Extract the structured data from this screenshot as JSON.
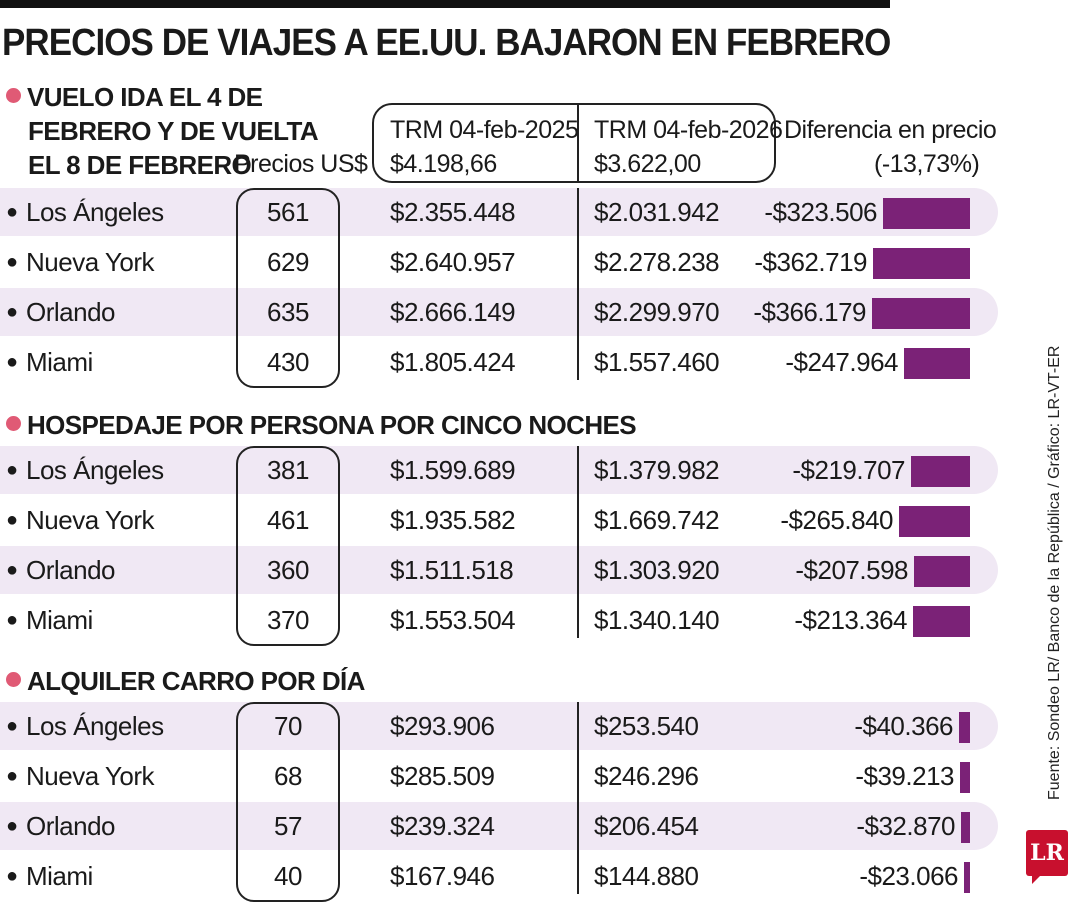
{
  "title": "PRECIOS DE VIAJES A EE.UU. BAJARON EN FEBRERO",
  "headers": {
    "section1_line1": "VUELO IDA EL 4 DE",
    "section1_line2": "FEBRERO Y DE VUELTA",
    "section1_line3": "EL 8 DE FEBRERO",
    "precios": "Precios US$",
    "trm2025_label": "TRM 04-feb-2025",
    "trm2025_value": "$4.198,66",
    "trm2026_label": "TRM 04-feb-2026",
    "trm2026_value": "$3.622,00",
    "diff_label": "Diferencia en precio",
    "diff_pct": "(-13,73%)"
  },
  "sections": [
    {
      "title": "VUELO IDA EL 4 DE FEBRERO Y DE VUELTA EL 8 DE FEBRERO",
      "rows": [
        {
          "city": "Los Ángeles",
          "usd": "561",
          "v2025": "$2.355.448",
          "v2026": "$2.031.942",
          "diff": "-$323.506",
          "diff_value": 323506
        },
        {
          "city": "Nueva York",
          "usd": "629",
          "v2025": "$2.640.957",
          "v2026": "$2.278.238",
          "diff": "-$362.719",
          "diff_value": 362719
        },
        {
          "city": "Orlando",
          "usd": "635",
          "v2025": "$2.666.149",
          "v2026": "$2.299.970",
          "diff": "-$366.179",
          "diff_value": 366179
        },
        {
          "city": "Miami",
          "usd": "430",
          "v2025": "$1.805.424",
          "v2026": "$1.557.460",
          "diff": "-$247.964",
          "diff_value": 247964
        }
      ]
    },
    {
      "title": "HOSPEDAJE POR PERSONA POR CINCO NOCHES",
      "rows": [
        {
          "city": "Los Ángeles",
          "usd": "381",
          "v2025": "$1.599.689",
          "v2026": "$1.379.982",
          "diff": "-$219.707",
          "diff_value": 219707
        },
        {
          "city": "Nueva York",
          "usd": "461",
          "v2025": "$1.935.582",
          "v2026": "$1.669.742",
          "diff": "-$265.840",
          "diff_value": 265840
        },
        {
          "city": "Orlando",
          "usd": "360",
          "v2025": "$1.511.518",
          "v2026": "$1.303.920",
          "diff": "-$207.598",
          "diff_value": 207598
        },
        {
          "city": "Miami",
          "usd": "370",
          "v2025": "$1.553.504",
          "v2026": "$1.340.140",
          "diff": "-$213.364",
          "diff_value": 213364
        }
      ]
    },
    {
      "title": "ALQUILER CARRO POR DÍA",
      "rows": [
        {
          "city": "Los Ángeles",
          "usd": "70",
          "v2025": "$293.906",
          "v2026": "$253.540",
          "diff": "-$40.366",
          "diff_value": 40366
        },
        {
          "city": "Nueva York",
          "usd": "68",
          "v2025": "$285.509",
          "v2026": "$246.296",
          "diff": "-$39.213",
          "diff_value": 39213
        },
        {
          "city": "Orlando",
          "usd": "57",
          "v2025": "$239.324",
          "v2026": "$206.454",
          "diff": "-$32.870",
          "diff_value": 32870
        },
        {
          "city": "Miami",
          "usd": "40",
          "v2025": "$167.946",
          "v2026": "$144.880",
          "diff": "-$23.066",
          "diff_value": 23066
        }
      ]
    }
  ],
  "source": "Fuente: Sondeo LR/ Banco de la República / Gráfico: LR-VT-ER",
  "logo_text": "LR",
  "colors": {
    "bar": "#7b2277",
    "dot": "#e05a75",
    "row_shade": "#f0e8f4"
  },
  "chart_data": {
    "type": "bar",
    "title": "PRECIOS DE VIAJES A EE.UU. BAJARON EN FEBRERO",
    "xlabel": "",
    "ylabel": "",
    "categories": [
      "Los Ángeles",
      "Nueva York",
      "Orlando",
      "Miami"
    ],
    "series": [
      {
        "name": "VUELO IDA EL 4 DE FEBRERO Y DE VUELTA EL 8 DE FEBRERO",
        "values": [
          -323506,
          -362719,
          -366179,
          -247964
        ]
      },
      {
        "name": "HOSPEDAJE POR PERSONA POR CINCO NOCHES",
        "values": [
          -219707,
          -265840,
          -207598,
          -213364
        ]
      },
      {
        "name": "ALQUILER CARRO POR DÍA",
        "values": [
          -40366,
          -39213,
          -32870,
          -23066
        ]
      }
    ]
  }
}
